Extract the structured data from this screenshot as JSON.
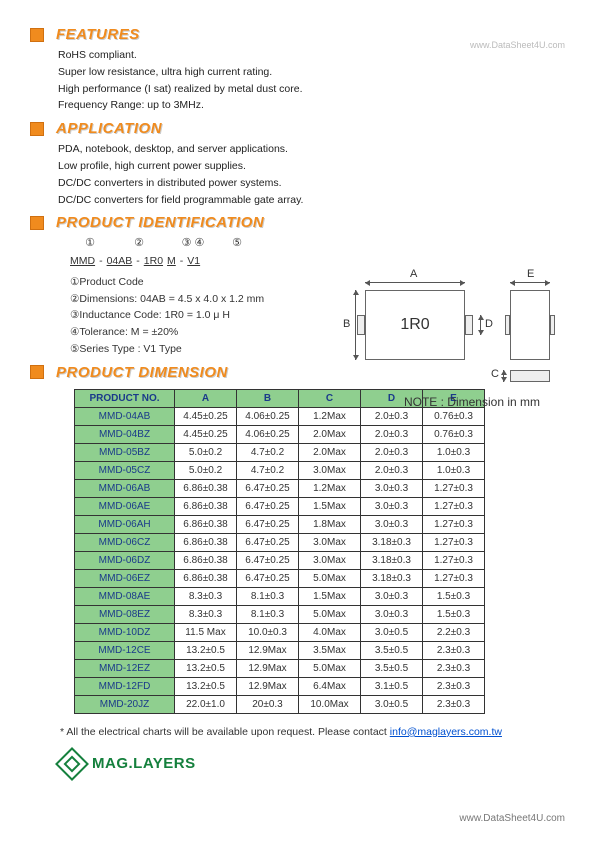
{
  "watermark_top": "www.DataSheet4U.com",
  "watermark_bottom": "www.DataSheet4U.com",
  "sections": {
    "features": {
      "title": "FEATURES",
      "lines": [
        "RoHS compliant.",
        "Super low resistance, ultra high current rating.",
        "High performance (I sat) realized by metal dust core.",
        "Frequency Range: up to 3MHz."
      ]
    },
    "application": {
      "title": "APPLICATION",
      "lines": [
        "PDA, notebook, desktop, and server applications.",
        "Low profile, high current power supplies.",
        "DC/DC converters in distributed power systems.",
        "DC/DC converters for field programmable gate array."
      ]
    },
    "identification": {
      "title": "PRODUCT IDENTIFICATION",
      "nums": [
        "①",
        "②",
        "③  ④",
        "⑤"
      ],
      "code_parts": [
        "MMD",
        "-",
        "04AB",
        "-",
        "1R0",
        "M",
        "-",
        "V1"
      ],
      "legend": [
        "①Product Code",
        "②Dimensions: 04AB = 4.5 x 4.0 x 1.2 mm",
        "③Inductance Code: 1R0 = 1.0 μ H",
        "④Tolerance: M = ±20%",
        "⑤Series Type : V1 Type"
      ]
    },
    "dimension": {
      "title": "PRODUCT DIMENSION"
    }
  },
  "diagram": {
    "box_label": "1R0",
    "labels": {
      "A": "A",
      "B": "B",
      "C": "C",
      "D": "D",
      "E": "E"
    }
  },
  "note": "NOTE  :  Dimension in mm",
  "table": {
    "headers": [
      "PRODUCT NO.",
      "A",
      "B",
      "C",
      "D",
      "E"
    ],
    "rows": [
      [
        "MMD-04AB",
        "4.45±0.25",
        "4.06±0.25",
        "1.2Max",
        "2.0±0.3",
        "0.76±0.3"
      ],
      [
        "MMD-04BZ",
        "4.45±0.25",
        "4.06±0.25",
        "2.0Max",
        "2.0±0.3",
        "0.76±0.3"
      ],
      [
        "MMD-05BZ",
        "5.0±0.2",
        "4.7±0.2",
        "2.0Max",
        "2.0±0.3",
        "1.0±0.3"
      ],
      [
        "MMD-05CZ",
        "5.0±0.2",
        "4.7±0.2",
        "3.0Max",
        "2.0±0.3",
        "1.0±0.3"
      ],
      [
        "MMD-06AB",
        "6.86±0.38",
        "6.47±0.25",
        "1.2Max",
        "3.0±0.3",
        "1.27±0.3"
      ],
      [
        "MMD-06AE",
        "6.86±0.38",
        "6.47±0.25",
        "1.5Max",
        "3.0±0.3",
        "1.27±0.3"
      ],
      [
        "MMD-06AH",
        "6.86±0.38",
        "6.47±0.25",
        "1.8Max",
        "3.0±0.3",
        "1.27±0.3"
      ],
      [
        "MMD-06CZ",
        "6.86±0.38",
        "6.47±0.25",
        "3.0Max",
        "3.18±0.3",
        "1.27±0.3"
      ],
      [
        "MMD-06DZ",
        "6.86±0.38",
        "6.47±0.25",
        "3.0Max",
        "3.18±0.3",
        "1.27±0.3"
      ],
      [
        "MMD-06EZ",
        "6.86±0.38",
        "6.47±0.25",
        "5.0Max",
        "3.18±0.3",
        "1.27±0.3"
      ],
      [
        "MMD-08AE",
        "8.3±0.3",
        "8.1±0.3",
        "1.5Max",
        "3.0±0.3",
        "1.5±0.3"
      ],
      [
        "MMD-08EZ",
        "8.3±0.3",
        "8.1±0.3",
        "5.0Max",
        "3.0±0.3",
        "1.5±0.3"
      ],
      [
        "MMD-10DZ",
        "11.5 Max",
        "10.0±0.3",
        "4.0Max",
        "3.0±0.5",
        "2.2±0.3"
      ],
      [
        "MMD-12CE",
        "13.2±0.5",
        "12.9Max",
        "3.5Max",
        "3.5±0.5",
        "2.3±0.3"
      ],
      [
        "MMD-12EZ",
        "13.2±0.5",
        "12.9Max",
        "5.0Max",
        "3.5±0.5",
        "2.3±0.3"
      ],
      [
        "MMD-12FD",
        "13.2±0.5",
        "12.9Max",
        "6.4Max",
        "3.1±0.5",
        "2.3±0.3"
      ],
      [
        "MMD-20JZ",
        "22.0±1.0",
        "20±0.3",
        "10.0Max",
        "3.0±0.5",
        "2.3±0.3"
      ]
    ]
  },
  "footer_note": {
    "prefix": "* All the electrical charts will be available upon request.    Please contact ",
    "link_text": "info@maglayers.com.tw"
  },
  "brand": "MAG.LAYERS",
  "colors": {
    "accent": "#f08b1e",
    "table_green": "#8fcf8f",
    "table_text": "#1a3a8a",
    "brand_green": "#15803d"
  }
}
